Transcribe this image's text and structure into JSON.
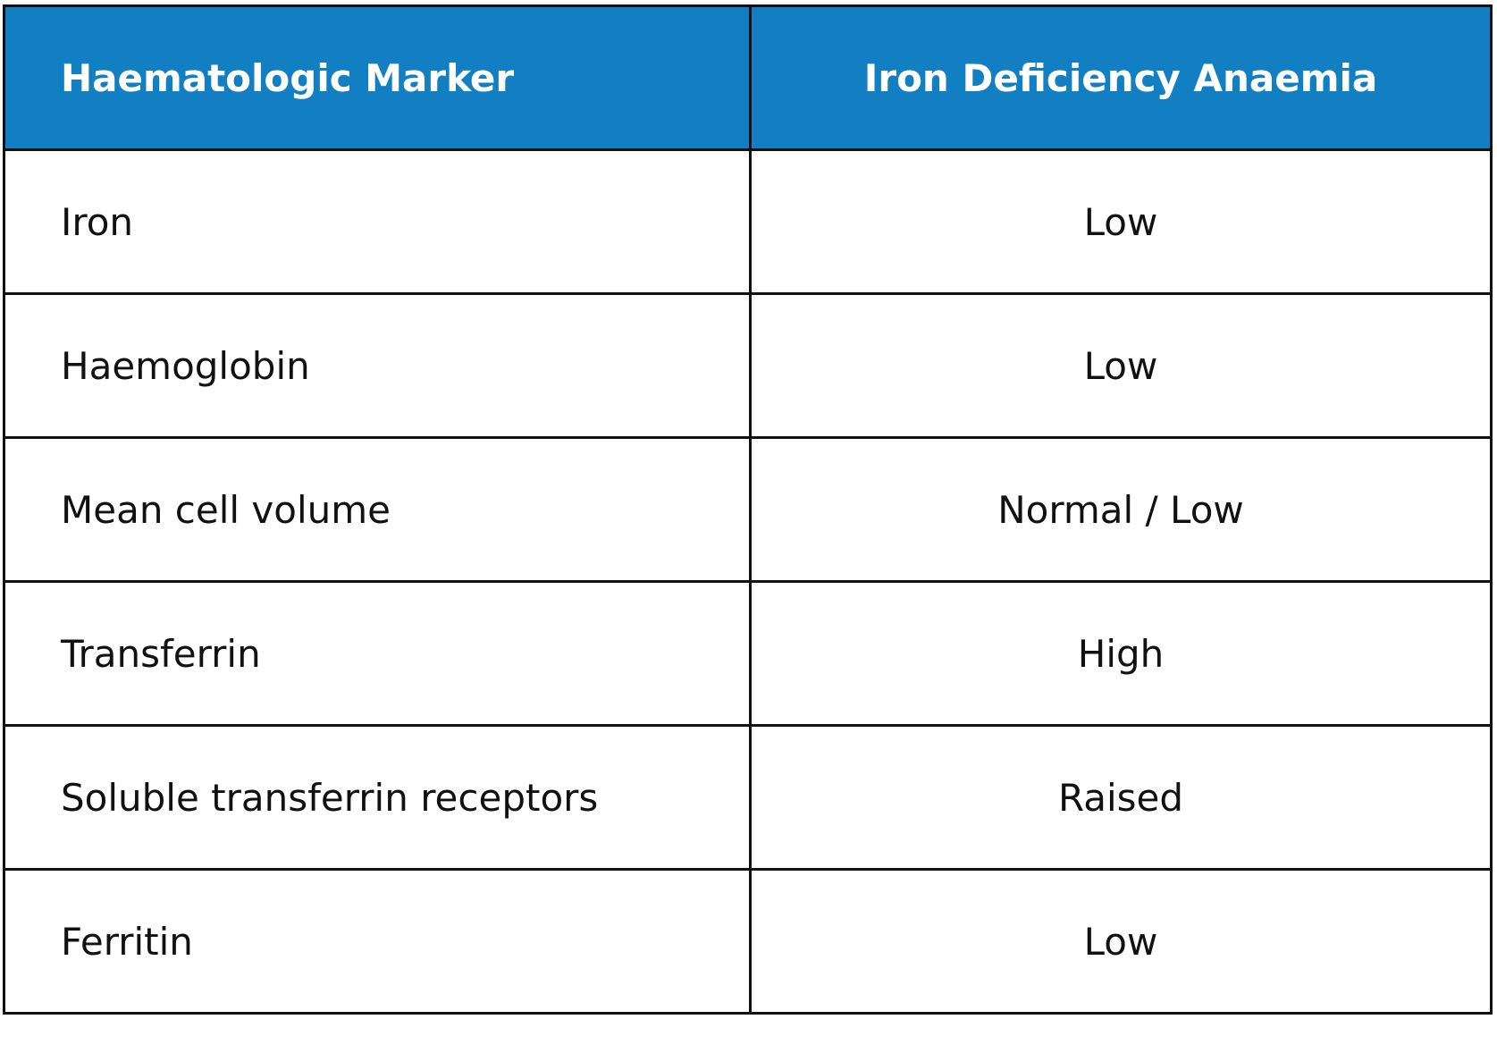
{
  "table": {
    "header": [
      "Haematologic Marker",
      "Iron Deficiency Anaemia"
    ],
    "rows": [
      [
        "Iron",
        "Low"
      ],
      [
        "Haemoglobin",
        "Low"
      ],
      [
        "Mean cell volume",
        "Normal / Low"
      ],
      [
        "Transferrin",
        "High"
      ],
      [
        "Soluble transferrin receptors",
        "Raised"
      ],
      [
        "Ferritin",
        "Low"
      ]
    ]
  }
}
